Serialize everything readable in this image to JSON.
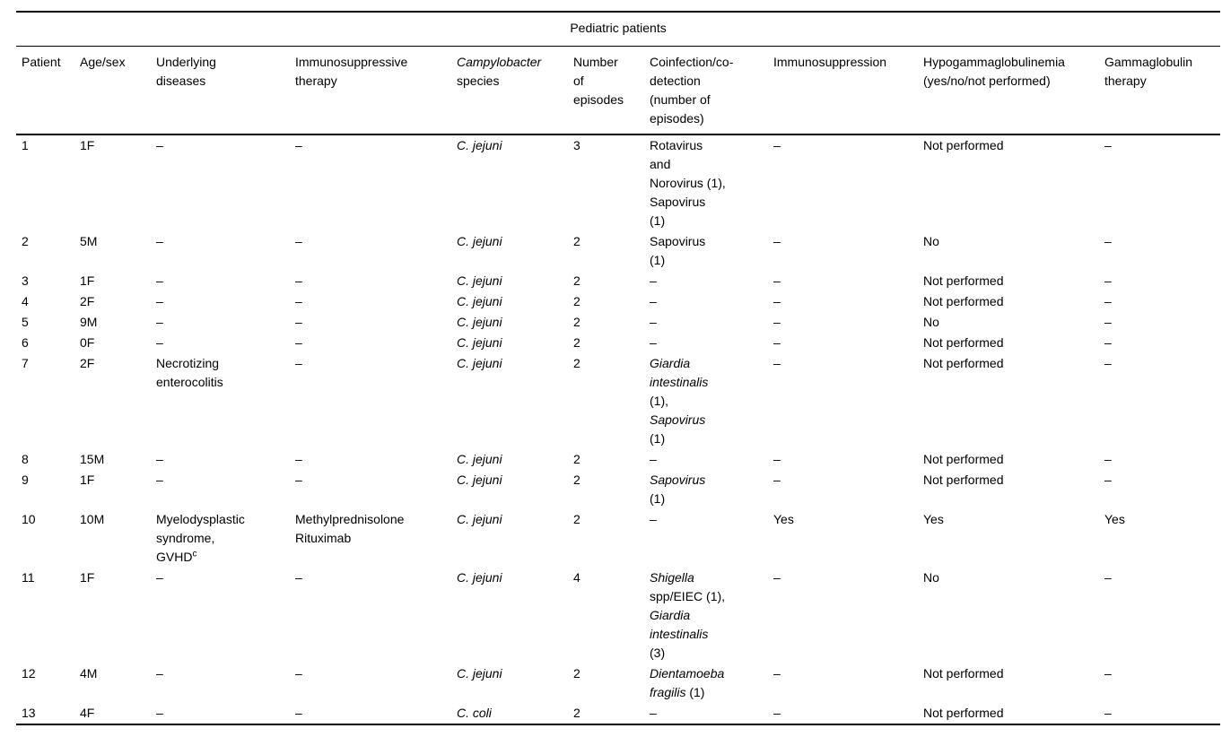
{
  "table": {
    "group_header": "Pediatric patients",
    "colors": {
      "text": "#000000",
      "background": "#ffffff",
      "rule": "#000000"
    },
    "columns": [
      "Patient",
      "Age/sex",
      "Underlying\ndiseases",
      "Immunosuppressive\ntherapy",
      [
        {
          "t": "Campylobacter\n",
          "i": true
        },
        {
          "t": "species"
        }
      ],
      "Number\nof\nepisodes",
      "Coinfection/co-\ndetection\n(number of\nepisodes)",
      "Immunosuppression",
      "Hypogammaglobulinemia\n(yes/no/not performed)",
      "Gammaglobulin\ntherapy"
    ],
    "rows": [
      [
        "1",
        "1F",
        "–",
        "–",
        [
          {
            "t": "C. jejuni",
            "i": true
          }
        ],
        "3",
        "Rotavirus\nand\nNorovirus (1),\nSapovirus\n(1)",
        "–",
        "Not performed",
        "–"
      ],
      [
        "2",
        "5M",
        "–",
        "–",
        [
          {
            "t": "C. jejuni",
            "i": true
          }
        ],
        "2",
        "Sapovirus\n(1)",
        "–",
        "No",
        "–"
      ],
      [
        "3",
        "1F",
        "–",
        "–",
        [
          {
            "t": "C. jejuni",
            "i": true
          }
        ],
        "2",
        "–",
        "–",
        "Not performed",
        "–"
      ],
      [
        "4",
        "2F",
        "–",
        "–",
        [
          {
            "t": "C. jejuni",
            "i": true
          }
        ],
        "2",
        "–",
        "–",
        "Not performed",
        "–"
      ],
      [
        "5",
        "9M",
        "–",
        "–",
        [
          {
            "t": "C. jejuni",
            "i": true
          }
        ],
        "2",
        "–",
        "–",
        "No",
        "–"
      ],
      [
        "6",
        "0F",
        "–",
        "–",
        [
          {
            "t": "C. jejuni",
            "i": true
          }
        ],
        "2",
        "–",
        "–",
        "Not performed",
        "–"
      ],
      [
        "7",
        "2F",
        "Necrotizing\nenterocolitis",
        "–",
        [
          {
            "t": "C. jejuni",
            "i": true
          }
        ],
        "2",
        [
          {
            "t": "Giardia\nintestinalis\n",
            "i": true
          },
          {
            "t": "(1),\n"
          },
          {
            "t": "Sapovirus\n",
            "i": true
          },
          {
            "t": "(1)"
          }
        ],
        "–",
        "Not performed",
        "–"
      ],
      [
        "8",
        "15M",
        "–",
        "–",
        [
          {
            "t": "C. jejuni",
            "i": true
          }
        ],
        "2",
        "–",
        "–",
        "Not performed",
        "–"
      ],
      [
        "9",
        "1F",
        "–",
        "–",
        [
          {
            "t": "C. jejuni",
            "i": true
          }
        ],
        "2",
        [
          {
            "t": "Sapovirus\n",
            "i": true
          },
          {
            "t": "(1)"
          }
        ],
        "–",
        "Not performed",
        "–"
      ],
      [
        "10",
        "10M",
        [
          {
            "t": "Myelodysplastic\nsyndrome,\nGVHD"
          },
          {
            "t": "c",
            "sup": true
          }
        ],
        "Methylprednisolone\nRituximab",
        [
          {
            "t": "C. jejuni",
            "i": true
          }
        ],
        "2",
        "–",
        "Yes",
        "Yes",
        "Yes"
      ],
      [
        "11",
        "1F",
        "–",
        "–",
        [
          {
            "t": "C. jejuni",
            "i": true
          }
        ],
        "4",
        [
          {
            "t": "Shigella\n",
            "i": true
          },
          {
            "t": "spp/EIEC (1),\n"
          },
          {
            "t": "Giardia\nintestinalis\n",
            "i": true
          },
          {
            "t": "(3)"
          }
        ],
        "–",
        "No",
        "–"
      ],
      [
        "12",
        "4M",
        "–",
        "–",
        [
          {
            "t": "C. jejuni",
            "i": true
          }
        ],
        "2",
        [
          {
            "t": "Dientamoeba\nfragilis ",
            "i": true
          },
          {
            "t": "(1)"
          }
        ],
        "–",
        "Not performed",
        "–"
      ],
      [
        "13",
        "4F",
        "–",
        "–",
        [
          {
            "t": "C. coli",
            "i": true
          }
        ],
        "2",
        "–",
        "–",
        "Not performed",
        "–"
      ]
    ]
  }
}
